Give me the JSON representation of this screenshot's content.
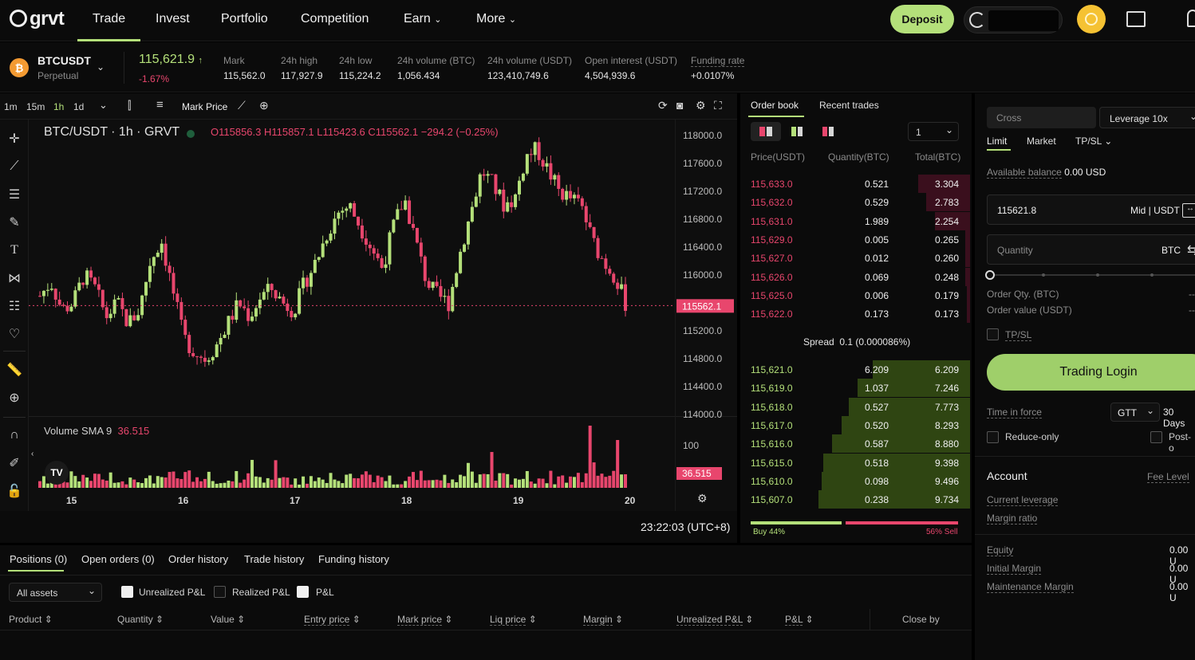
{
  "nav": {
    "logo": "grvt",
    "items": [
      "Trade",
      "Invest",
      "Portfolio",
      "Competition",
      "Earn",
      "More"
    ],
    "deposit": "Deposit"
  },
  "ticker": {
    "symbol": "BTCUSDT",
    "type": "Perpetual",
    "price": "115,621.9",
    "change": "-1.67%",
    "stats": [
      {
        "label": "Mark",
        "value": "115,562.0"
      },
      {
        "label": "24h high",
        "value": "117,927.9"
      },
      {
        "label": "24h low",
        "value": "115,224.2"
      },
      {
        "label": "24h volume (BTC)",
        "value": "1,056.434"
      },
      {
        "label": "24h volume (USDT)",
        "value": "123,410,749.6"
      },
      {
        "label": "Open interest (USDT)",
        "value": "4,504,939.6"
      },
      {
        "label": "Funding rate",
        "value": "+0.0107%"
      }
    ]
  },
  "chart_toolbar": {
    "intervals": [
      "1m",
      "15m",
      "1h",
      "1d"
    ],
    "active_interval": "1h",
    "mark_price": "Mark Price"
  },
  "chart": {
    "legend_title": "BTC/USDT · 1h · GRVT",
    "ohlc": {
      "o": "O115856.3",
      "h": "H115857.1",
      "l": "L115423.6",
      "c": "C115562.1",
      "chg": "−294.2 (−0.25%)"
    },
    "price_ticks": [
      "118000.0",
      "117600.0",
      "117200.0",
      "116800.0",
      "116400.0",
      "116000.0",
      "115200.0",
      "114800.0",
      "114400.0",
      "114000.0"
    ],
    "last_price_tag": "115562.1",
    "volume_label": "Volume SMA 9",
    "volume_value": "36.515",
    "volume_tick": "100",
    "volume_tag": "36.515",
    "x_ticks": [
      "15",
      "16",
      "17",
      "18",
      "19",
      "20"
    ],
    "time": "23:22:03 (UTC+8)"
  },
  "chart_data": {
    "type": "candlestick",
    "y_range": [
      114000,
      118000
    ],
    "x_ticks": [
      "15",
      "16",
      "17",
      "18",
      "19",
      "20"
    ],
    "candles_close_approx": [
      115700,
      115900,
      115500,
      115600,
      116000,
      115800,
      115400,
      115600,
      115300,
      115500,
      116200,
      116500,
      115800,
      115100,
      114900,
      114800,
      115000,
      115300,
      115600,
      115400,
      115700,
      115800,
      115600,
      115500,
      115900,
      116200,
      116600,
      116900,
      117000,
      116700,
      116400,
      116100,
      116700,
      117100,
      116500,
      115900,
      115700,
      115600,
      116300,
      116900,
      117500,
      117300,
      117000,
      117100,
      117700,
      117800,
      117500,
      117200,
      117100,
      117000,
      116500,
      116200,
      116000,
      115600
    ],
    "volume_sma": 36.515
  },
  "orderbook": {
    "tabs": [
      "Order book",
      "Recent trades"
    ],
    "precision": "1",
    "headers": [
      "Price(USDT)",
      "Quantity(BTC)",
      "Total(BTC)"
    ],
    "asks": [
      {
        "price": "115,633.0",
        "qty": "0.521",
        "total": "3.304",
        "depth": 0.34
      },
      {
        "price": "115,632.0",
        "qty": "0.529",
        "total": "2.783",
        "depth": 0.29
      },
      {
        "price": "115,631.0",
        "qty": "1.989",
        "total": "2.254",
        "depth": 0.23
      },
      {
        "price": "115,629.0",
        "qty": "0.005",
        "total": "0.265",
        "depth": 0.03
      },
      {
        "price": "115,627.0",
        "qty": "0.012",
        "total": "0.260",
        "depth": 0.03
      },
      {
        "price": "115,626.0",
        "qty": "0.069",
        "total": "0.248",
        "depth": 0.03
      },
      {
        "price": "115,625.0",
        "qty": "0.006",
        "total": "0.179",
        "depth": 0.02
      },
      {
        "price": "115,622.0",
        "qty": "0.173",
        "total": "0.173",
        "depth": 0.02
      }
    ],
    "spread_label": "Spread",
    "spread_value": "0.1 (0.000086%)",
    "bids": [
      {
        "price": "115,621.0",
        "qty": "6.209",
        "total": "6.209",
        "depth": 0.64
      },
      {
        "price": "115,619.0",
        "qty": "1.037",
        "total": "7.246",
        "depth": 0.74
      },
      {
        "price": "115,618.0",
        "qty": "0.527",
        "total": "7.773",
        "depth": 0.8
      },
      {
        "price": "115,617.0",
        "qty": "0.520",
        "total": "8.293",
        "depth": 0.85
      },
      {
        "price": "115,616.0",
        "qty": "0.587",
        "total": "8.880",
        "depth": 0.91
      },
      {
        "price": "115,615.0",
        "qty": "0.518",
        "total": "9.398",
        "depth": 0.97
      },
      {
        "price": "115,610.0",
        "qty": "0.098",
        "total": "9.496",
        "depth": 0.98
      },
      {
        "price": "115,607.0",
        "qty": "0.238",
        "total": "9.734",
        "depth": 1.0
      }
    ],
    "buy_pct": "Buy 44%",
    "sell_pct": "56% Sell",
    "buy_ratio": 0.44
  },
  "trade": {
    "margin_mode": "Cross",
    "leverage": "Leverage 10x",
    "order_types": [
      "Limit",
      "Market",
      "TP/SL"
    ],
    "available_label": "Available balance",
    "available_value": "0.00 USD",
    "price_value": "115621.8",
    "price_suffix": "Mid | USDT",
    "quantity_placeholder": "Quantity",
    "quantity_unit": "BTC",
    "order_qty_label": "Order Qty. (BTC)",
    "order_value_label": "Order value (USDT)",
    "dash": "--",
    "tpsl": "TP/SL",
    "login_button": "Trading Login",
    "tif_label": "Time in force",
    "tif_value": "GTT",
    "tif_days": "30 Days",
    "reduce_only": "Reduce-only",
    "post_only": "Post-o"
  },
  "account": {
    "title": "Account",
    "fee_level": "Fee Level",
    "rows": [
      "Current leverage",
      "Margin ratio"
    ],
    "balances": [
      {
        "label": "Equity",
        "value": "0.00 U"
      },
      {
        "label": "Initial Margin",
        "value": "0.00 U"
      },
      {
        "label": "Maintenance Margin",
        "value": "0.00 U"
      }
    ]
  },
  "positions": {
    "tabs": [
      "Positions (0)",
      "Open orders (0)",
      "Order history",
      "Trade history",
      "Funding history"
    ],
    "asset_filter": "All assets",
    "filters": [
      {
        "label": "Unrealized P&L",
        "checked": true
      },
      {
        "label": "Realized P&L",
        "checked": false
      },
      {
        "label": "P&L",
        "checked": true
      }
    ],
    "columns": [
      "Product",
      "Quantity",
      "Value",
      "Entry price",
      "Mark price",
      "Liq price",
      "Margin",
      "Unrealized P&L",
      "P&L",
      "Close by"
    ]
  }
}
